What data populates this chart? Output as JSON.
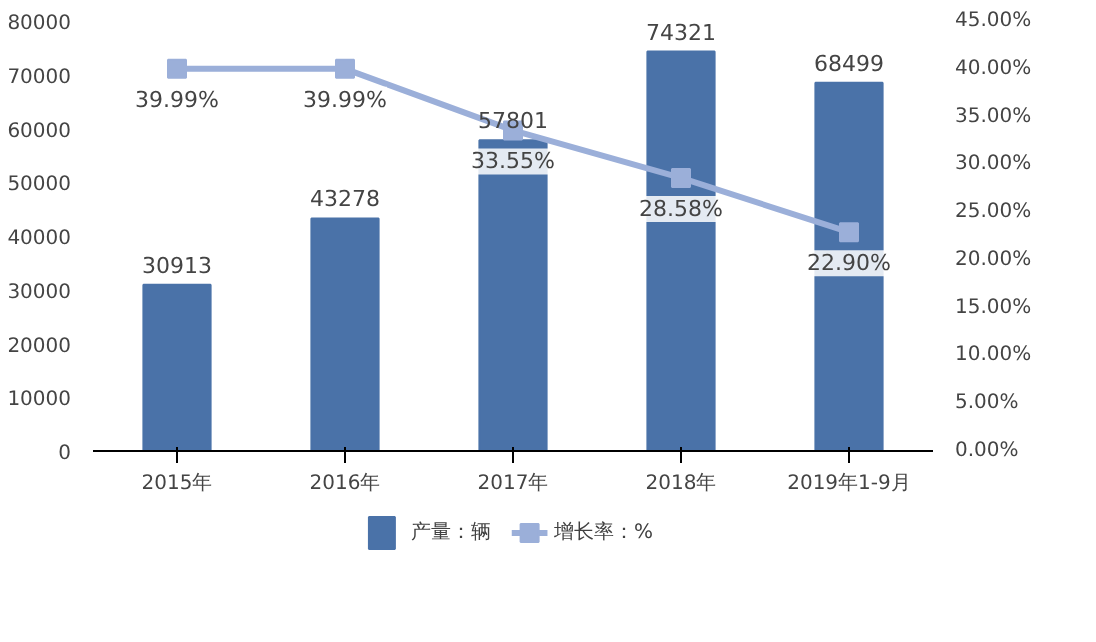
{
  "chart_data": {
    "type": "bar",
    "categories": [
      "2015年",
      "2016年",
      "2017年",
      "2018年",
      "2019年1-9月"
    ],
    "series": [
      {
        "name": "产量：辆",
        "color": "#4a72a8",
        "values": [
          30913,
          43278,
          57801,
          74321,
          68499
        ]
      },
      {
        "name": "增长率：%",
        "type": "line",
        "axis": "y2",
        "color": "#9bafd9",
        "values": [
          39.99,
          39.99,
          33.55,
          28.58,
          22.9
        ],
        "value_labels": [
          "39.99%",
          "39.99%",
          "33.55%",
          "28.58%",
          "22.90%"
        ]
      }
    ],
    "ylim": [
      0,
      80000
    ],
    "yticks": [
      0,
      10000,
      20000,
      30000,
      40000,
      50000,
      60000,
      70000,
      80000
    ],
    "y2lim": [
      0,
      45
    ],
    "y2ticks": [
      {
        "value": 0,
        "label": "0.00%"
      },
      {
        "value": 5,
        "label": "5.00%"
      },
      {
        "value": 10,
        "label": "10.00%"
      },
      {
        "value": 15,
        "label": "15.00%"
      },
      {
        "value": 20,
        "label": "20.00%"
      },
      {
        "value": 25,
        "label": "25.00%"
      },
      {
        "value": 30,
        "label": "30.00%"
      },
      {
        "value": 35,
        "label": "35.00%"
      },
      {
        "value": 40,
        "label": "40.00%"
      },
      {
        "value": 45,
        "label": "45.00%"
      }
    ],
    "data_labels": true,
    "legend": "bottom",
    "grid": false,
    "marker": "square"
  }
}
